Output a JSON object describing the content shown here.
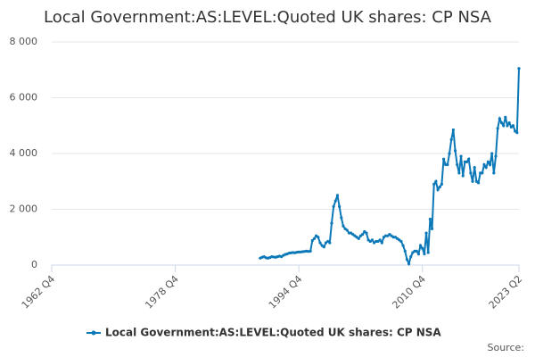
{
  "chart_data": {
    "type": "line",
    "title": "Local Government:AS:LEVEL:Quoted UK shares: CP NSA",
    "source": "Source:",
    "categories": [
      "1962 Q4",
      null,
      null,
      null,
      null,
      null,
      null,
      null,
      null,
      null,
      null,
      null,
      null,
      null,
      null,
      null,
      null,
      null,
      null,
      null,
      null,
      null,
      null,
      null,
      null,
      null,
      null,
      null,
      null,
      null,
      null,
      null,
      null,
      null,
      null,
      null,
      null,
      null,
      null,
      null,
      null,
      null,
      null,
      null,
      null,
      null,
      null,
      null,
      null,
      null,
      null,
      null,
      null,
      null,
      null,
      null,
      null,
      null,
      null,
      null,
      null,
      null,
      null,
      null,
      "1978 Q4",
      null,
      null,
      null,
      null,
      null,
      null,
      null,
      null,
      null,
      null,
      null,
      null,
      null,
      null,
      null,
      null,
      null,
      null,
      null,
      null,
      null,
      null,
      null,
      null,
      null,
      null,
      null,
      null,
      null,
      null,
      null,
      null,
      null,
      null,
      null,
      null,
      null,
      null,
      null,
      null,
      null,
      null,
      null,
      null,
      null,
      null,
      null,
      null,
      null,
      null,
      null,
      null,
      null,
      null,
      null,
      null,
      null,
      null,
      null,
      null,
      null,
      null,
      null,
      "1994 Q4",
      null,
      null,
      null,
      null,
      null,
      null,
      null,
      null,
      null,
      null,
      null,
      null,
      null,
      null,
      null,
      null,
      null,
      null,
      null,
      null,
      null,
      null,
      null,
      null,
      null,
      null,
      null,
      null,
      null,
      null,
      null,
      null,
      null,
      null,
      null,
      null,
      null,
      null,
      null,
      null,
      null,
      null,
      null,
      null,
      null,
      null,
      null,
      null,
      null,
      null,
      null,
      null,
      null,
      null,
      null,
      null,
      null,
      null,
      null,
      null,
      null,
      null,
      null,
      "2010 Q4",
      null,
      null,
      null,
      null,
      null,
      null,
      null,
      null,
      null,
      null,
      null,
      null,
      null,
      null,
      null,
      null,
      null,
      null,
      null,
      null,
      null,
      null,
      null,
      null,
      null,
      null,
      null,
      null,
      null,
      null,
      null,
      null,
      null,
      null,
      null,
      null,
      null,
      null,
      null,
      null,
      null,
      null,
      null,
      null,
      null,
      null,
      null,
      null,
      null,
      "2023 Q2"
    ],
    "series": [
      {
        "name": "Local Government:AS:LEVEL:Quoted UK shares: CP NSA",
        "color": "#0b78b8",
        "values": [
          null,
          null,
          null,
          null,
          null,
          null,
          null,
          null,
          null,
          null,
          null,
          null,
          null,
          null,
          null,
          null,
          null,
          null,
          null,
          null,
          null,
          null,
          null,
          null,
          null,
          null,
          null,
          null,
          null,
          null,
          null,
          null,
          null,
          null,
          null,
          null,
          null,
          null,
          null,
          null,
          null,
          null,
          null,
          null,
          null,
          null,
          null,
          null,
          null,
          null,
          null,
          null,
          null,
          null,
          null,
          null,
          null,
          null,
          null,
          null,
          null,
          null,
          null,
          null,
          null,
          null,
          null,
          null,
          null,
          null,
          null,
          null,
          null,
          null,
          null,
          null,
          null,
          null,
          null,
          null,
          null,
          null,
          null,
          null,
          null,
          null,
          null,
          null,
          null,
          null,
          null,
          null,
          null,
          null,
          null,
          null,
          null,
          null,
          null,
          null,
          null,
          null,
          null,
          null,
          null,
          null,
          null,
          null,
          250,
          280,
          300,
          260,
          250,
          270,
          300,
          290,
          280,
          300,
          320,
          300,
          350,
          380,
          400,
          430,
          440,
          450,
          440,
          460,
          470,
          470,
          480,
          490,
          500,
          490,
          500,
          880,
          950,
          1050,
          1000,
          800,
          700,
          650,
          800,
          850,
          800,
          1500,
          2100,
          2300,
          2500,
          2100,
          1700,
          1400,
          1300,
          1250,
          1150,
          1150,
          1100,
          1050,
          1000,
          950,
          1050,
          1100,
          1200,
          1150,
          900,
          850,
          900,
          800,
          850,
          850,
          900,
          800,
          1000,
          1050,
          1050,
          1100,
          1050,
          1000,
          1000,
          950,
          900,
          850,
          700,
          500,
          200,
          50,
          300,
          450,
          500,
          500,
          400,
          700,
          600,
          400,
          1150,
          450,
          1650,
          1300,
          2900,
          3000,
          2700,
          2800,
          2900,
          3800,
          3600,
          3600,
          4000,
          4500,
          4850,
          4100,
          3600,
          3300,
          3900,
          3200,
          3700,
          3700,
          3800,
          3300,
          3000,
          3500,
          3000,
          2950,
          3300,
          3300,
          3600,
          3500,
          3700,
          3600,
          4000,
          3300,
          3900,
          4900,
          5250,
          5100,
          5000,
          5300,
          5000,
          5100,
          4950,
          5000,
          4800,
          4750,
          7050
        ]
      }
    ],
    "ylim": [
      0,
      8000
    ],
    "yticks": [
      0,
      {
        "value": 2000,
        "label": "2 000"
      },
      {
        "value": 4000,
        "label": "4 000"
      },
      {
        "value": 6000,
        "label": "6 000"
      },
      {
        "value": 8000,
        "label": "8 000"
      }
    ],
    "grid": true,
    "legend": "bottom"
  }
}
